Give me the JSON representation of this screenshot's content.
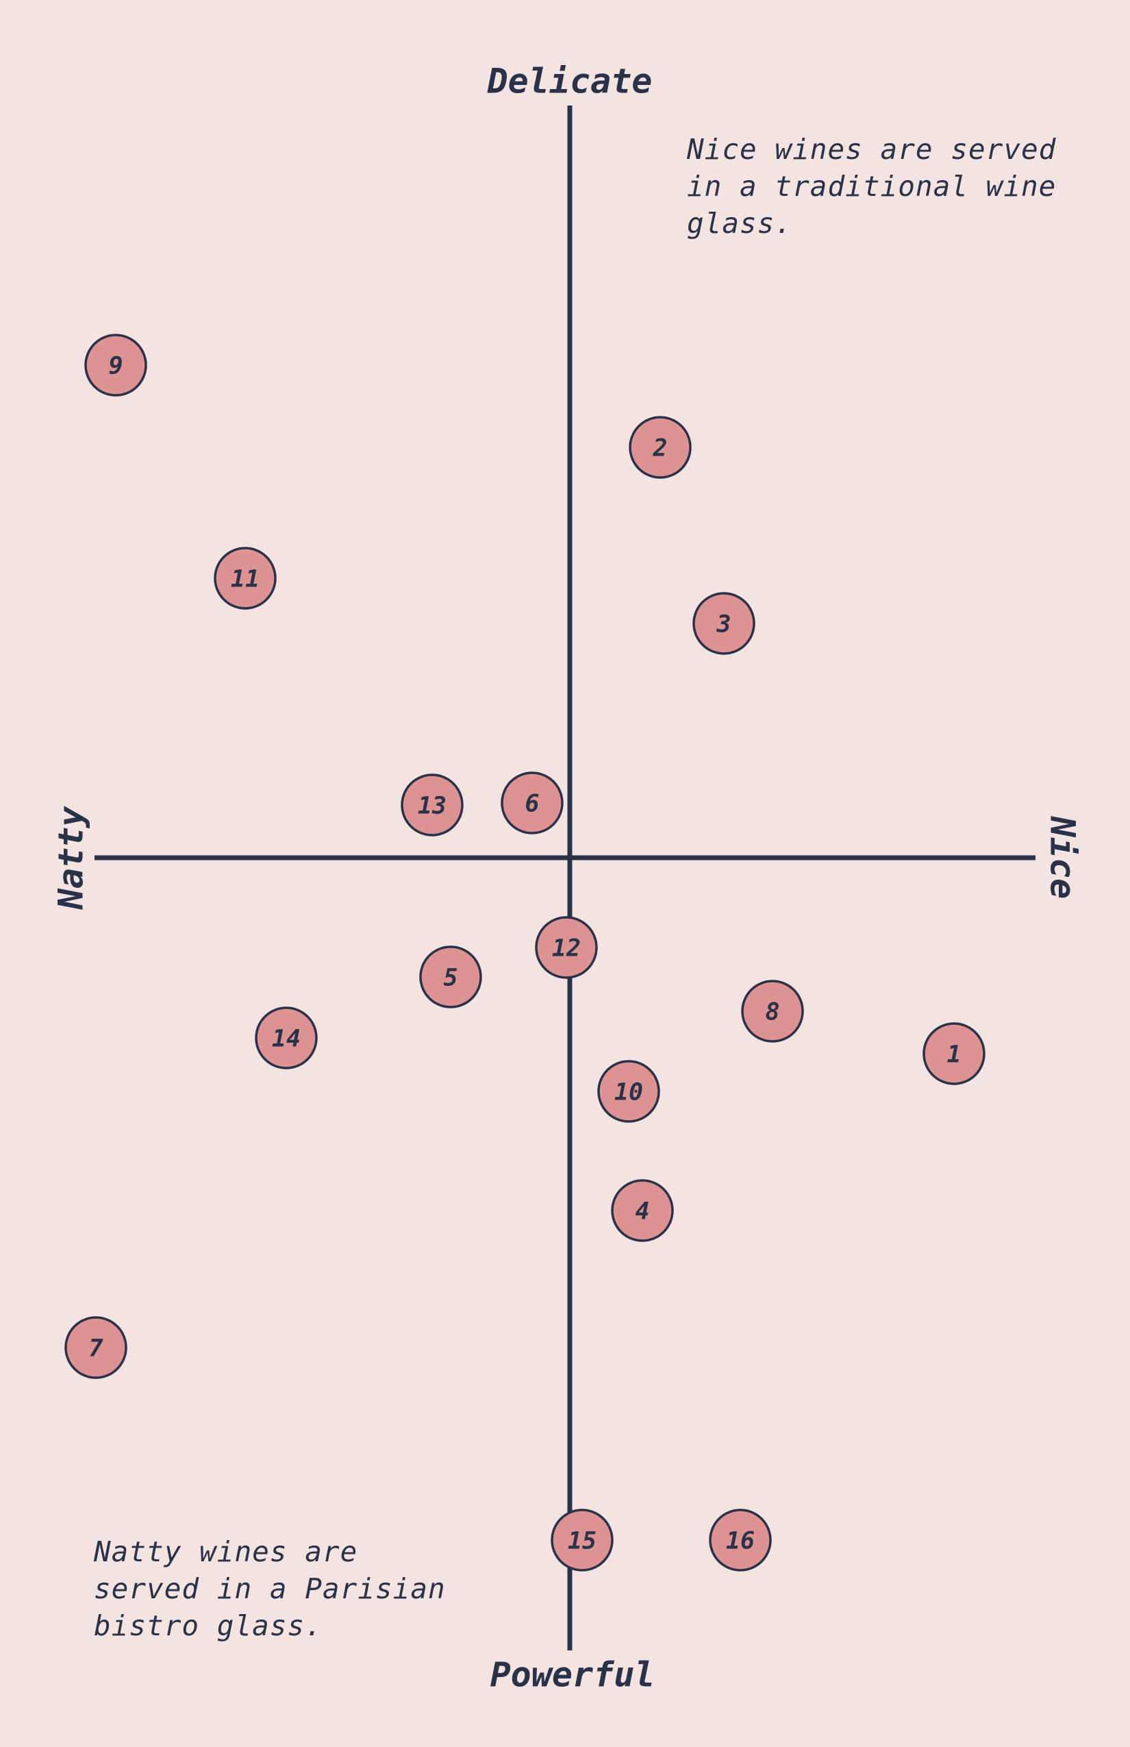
{
  "axes": {
    "top": "Delicate",
    "bottom": "Powerful",
    "left": "Natty",
    "right": "Nice"
  },
  "notes": {
    "nice": [
      "Nice wines are served",
      "in a traditional wine",
      "glass."
    ],
    "natty": [
      "Natty wines are",
      "served in a Parisian",
      "bistro glass."
    ]
  },
  "nodes": [
    {
      "label": "1"
    },
    {
      "label": "2"
    },
    {
      "label": "3"
    },
    {
      "label": "4"
    },
    {
      "label": "5"
    },
    {
      "label": "6"
    },
    {
      "label": "7"
    },
    {
      "label": "8"
    },
    {
      "label": "9"
    },
    {
      "label": "10"
    },
    {
      "label": "11"
    },
    {
      "label": "12"
    },
    {
      "label": "13"
    },
    {
      "label": "14"
    },
    {
      "label": "15"
    },
    {
      "label": "16"
    }
  ]
}
